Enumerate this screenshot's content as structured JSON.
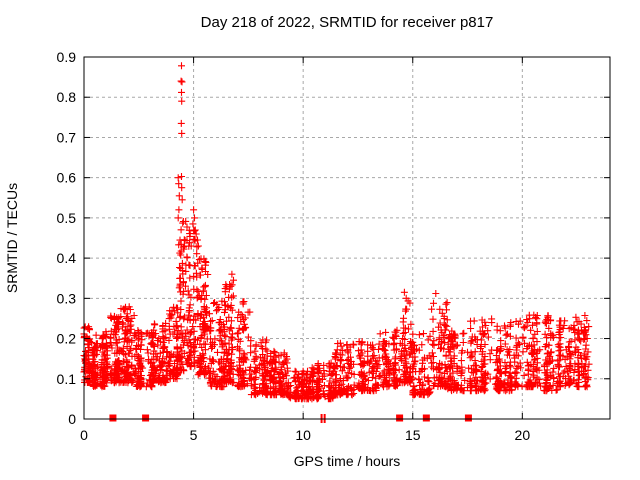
{
  "page": {
    "background_color": "#ffffff"
  },
  "chart_data": {
    "type": "scatter",
    "title": "Day 218 of 2022, SRMTID for receiver p817",
    "xlabel": "GPS time / hours",
    "ylabel": "SRMTID / TECUs",
    "xlim": [
      0,
      24
    ],
    "ylim": [
      0,
      0.9
    ],
    "xticks": [
      0,
      5,
      10,
      15,
      20
    ],
    "yticks": [
      0,
      0.1,
      0.2,
      0.3,
      0.4,
      0.5,
      0.6,
      0.7,
      0.8,
      0.9
    ],
    "grid": true,
    "legend": "none",
    "marker": "plus-cross",
    "marker_color": "#ff0000",
    "grid_color": "#a8a8a8",
    "axis_color": "#000000",
    "series_name": "SRMTID for receiver p817",
    "seed": 1218,
    "spike_points": [
      [
        4.45,
        0.878
      ],
      [
        4.43,
        0.84
      ],
      [
        4.47,
        0.838
      ],
      [
        4.45,
        0.812
      ],
      [
        4.46,
        0.79
      ],
      [
        4.44,
        0.735
      ],
      [
        4.46,
        0.71
      ],
      [
        4.45,
        0.603
      ],
      [
        4.3,
        0.6
      ],
      [
        4.32,
        0.585
      ],
      [
        4.46,
        0.575
      ],
      [
        4.35,
        0.555
      ],
      [
        4.48,
        0.545
      ],
      [
        4.33,
        0.52
      ],
      [
        4.3,
        0.5
      ],
      [
        5.0,
        0.52
      ],
      [
        5.04,
        0.5
      ],
      [
        4.97,
        0.485
      ],
      [
        5.08,
        0.47
      ],
      [
        5.12,
        0.46
      ],
      [
        5.18,
        0.445
      ],
      [
        5.22,
        0.43
      ],
      [
        5.15,
        0.428
      ],
      [
        6.75,
        0.36
      ],
      [
        6.82,
        0.345
      ],
      [
        6.7,
        0.33
      ],
      [
        14.62,
        0.315
      ],
      [
        16.05,
        0.312
      ],
      [
        14.7,
        0.3
      ]
    ],
    "density_segments": [
      [
        0.0,
        0.35,
        70,
        0.09,
        0.23
      ],
      [
        0.35,
        1.0,
        110,
        0.08,
        0.21
      ],
      [
        1.0,
        1.6,
        110,
        0.09,
        0.26
      ],
      [
        1.6,
        2.3,
        110,
        0.09,
        0.28
      ],
      [
        2.3,
        3.1,
        110,
        0.08,
        0.22
      ],
      [
        3.1,
        3.8,
        100,
        0.09,
        0.24
      ],
      [
        3.8,
        4.3,
        80,
        0.1,
        0.28
      ],
      [
        4.3,
        4.7,
        70,
        0.12,
        0.5
      ],
      [
        4.7,
        5.2,
        90,
        0.13,
        0.47
      ],
      [
        5.2,
        5.7,
        90,
        0.11,
        0.42
      ],
      [
        5.7,
        6.4,
        100,
        0.08,
        0.3
      ],
      [
        6.4,
        7.0,
        90,
        0.09,
        0.34
      ],
      [
        7.0,
        7.6,
        80,
        0.08,
        0.3
      ],
      [
        7.6,
        8.4,
        100,
        0.06,
        0.2
      ],
      [
        8.4,
        9.3,
        110,
        0.06,
        0.17
      ],
      [
        9.3,
        10.4,
        120,
        0.05,
        0.12
      ],
      [
        10.4,
        11.4,
        110,
        0.05,
        0.14
      ],
      [
        11.4,
        12.4,
        110,
        0.06,
        0.19
      ],
      [
        12.4,
        13.4,
        110,
        0.07,
        0.2
      ],
      [
        13.4,
        14.3,
        100,
        0.08,
        0.23
      ],
      [
        14.3,
        15.0,
        80,
        0.09,
        0.31
      ],
      [
        15.0,
        15.8,
        80,
        0.06,
        0.22
      ],
      [
        15.8,
        16.6,
        90,
        0.08,
        0.31
      ],
      [
        16.6,
        17.5,
        90,
        0.07,
        0.22
      ],
      [
        17.5,
        18.6,
        110,
        0.07,
        0.25
      ],
      [
        18.6,
        19.6,
        100,
        0.07,
        0.24
      ],
      [
        19.6,
        20.6,
        100,
        0.08,
        0.26
      ],
      [
        20.6,
        21.6,
        100,
        0.07,
        0.26
      ],
      [
        21.6,
        22.4,
        90,
        0.08,
        0.25
      ],
      [
        22.4,
        23.05,
        80,
        0.08,
        0.26
      ]
    ],
    "bottom_square_markers_x": [
      1.32,
      2.81,
      14.4,
      15.62,
      17.54
    ],
    "bottom_bar_markers_x": [
      10.84,
      10.98
    ]
  }
}
